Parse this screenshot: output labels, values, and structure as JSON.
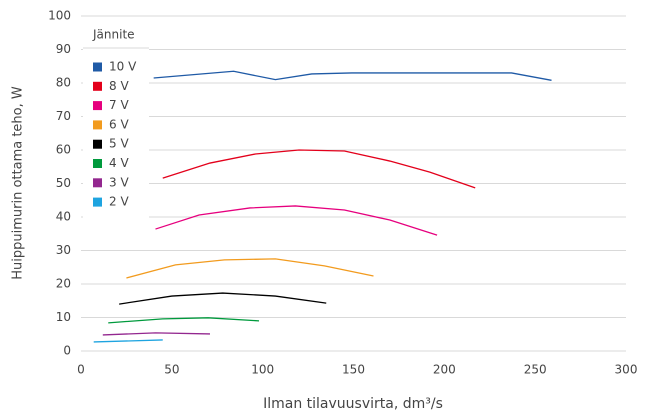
{
  "chart_data": {
    "type": "line",
    "xlabel": "Ilman tilavuusvirta, dm³/s",
    "ylabel": "Huippuimurin ottama teho, W",
    "legend_title": "Jännite",
    "legend": "upper left",
    "grid": true,
    "xlim": [
      0,
      300
    ],
    "xticks": [
      0,
      50,
      100,
      150,
      200,
      250,
      300
    ],
    "ylim": [
      0,
      100
    ],
    "yticks": [
      0,
      10,
      20,
      30,
      40,
      50,
      60,
      70,
      80,
      90,
      100
    ],
    "series": [
      {
        "name": "10 V",
        "color": "#1f5aa6",
        "x": [
          40,
          84,
          107,
          127,
          149,
          237,
          259
        ],
        "values": [
          81.5,
          83.5,
          81,
          82.7,
          83,
          83,
          80.8
        ]
      },
      {
        "name": "8 V",
        "color": "#e3001b",
        "x": [
          45,
          71,
          96,
          120,
          145,
          170,
          192,
          217
        ],
        "values": [
          51.6,
          56.1,
          58.8,
          60,
          59.7,
          56.7,
          53.4,
          48.7
        ]
      },
      {
        "name": "7 V",
        "color": "#e6007e",
        "x": [
          41,
          65,
          93,
          118,
          145,
          170,
          196
        ],
        "values": [
          36.4,
          40.6,
          42.7,
          43.3,
          42.1,
          39.1,
          34.6
        ]
      },
      {
        "name": "6 V",
        "color": "#f29b1e",
        "x": [
          25,
          52,
          79,
          107,
          134,
          161
        ],
        "values": [
          21.8,
          25.7,
          27.2,
          27.5,
          25.4,
          22.4
        ]
      },
      {
        "name": "5 V",
        "color": "#000000",
        "x": [
          21,
          50,
          78,
          107,
          135
        ],
        "values": [
          14,
          16.4,
          17.3,
          16.4,
          14.3
        ]
      },
      {
        "name": "4 V",
        "color": "#009a3d",
        "x": [
          15,
          45,
          70,
          98
        ],
        "values": [
          8.4,
          9.6,
          9.9,
          9
        ]
      },
      {
        "name": "3 V",
        "color": "#93278f",
        "x": [
          12,
          41,
          71
        ],
        "values": [
          4.8,
          5.4,
          5.1
        ]
      },
      {
        "name": "2 V",
        "color": "#1ea4e0",
        "x": [
          7,
          45
        ],
        "values": [
          2.7,
          3.3
        ]
      }
    ]
  }
}
